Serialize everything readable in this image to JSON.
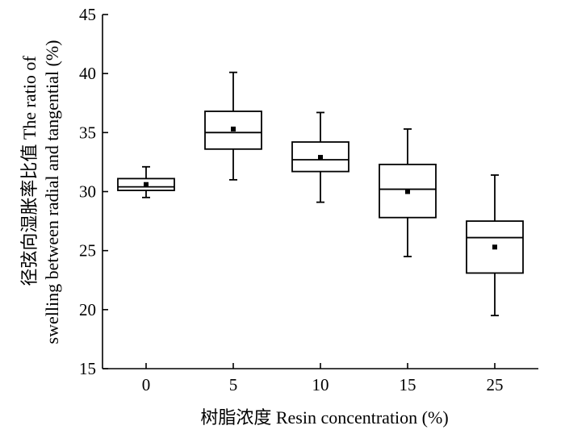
{
  "chart_data": {
    "type": "box",
    "categories": [
      "0",
      "5",
      "10",
      "15",
      "25"
    ],
    "boxes": [
      {
        "category": "0",
        "whisker_low": 29.5,
        "q1": 30.1,
        "median": 30.4,
        "q3": 31.1,
        "whisker_high": 32.1,
        "mean": 30.6
      },
      {
        "category": "5",
        "whisker_low": 31.0,
        "q1": 33.6,
        "median": 35.0,
        "q3": 36.8,
        "whisker_high": 40.1,
        "mean": 35.3
      },
      {
        "category": "10",
        "whisker_low": 29.1,
        "q1": 31.7,
        "median": 32.7,
        "q3": 34.2,
        "whisker_high": 36.7,
        "mean": 32.9
      },
      {
        "category": "15",
        "whisker_low": 24.5,
        "q1": 27.8,
        "median": 30.2,
        "q3": 32.3,
        "whisker_high": 35.3,
        "mean": 30.0
      },
      {
        "category": "25",
        "whisker_low": 19.5,
        "q1": 23.1,
        "median": 26.1,
        "q3": 27.5,
        "whisker_high": 31.4,
        "mean": 25.3
      }
    ],
    "xlabel": "树脂浓度 Resin concentration (%)",
    "ylabel_line1": "径弦向湿胀率比值 The ratio of",
    "ylabel_line2": "swelling between radial and tangential (%)",
    "ylim": [
      15,
      45
    ],
    "yticks": [
      15,
      20,
      25,
      30,
      35,
      40,
      45
    ],
    "grid": false,
    "legend": "none"
  }
}
